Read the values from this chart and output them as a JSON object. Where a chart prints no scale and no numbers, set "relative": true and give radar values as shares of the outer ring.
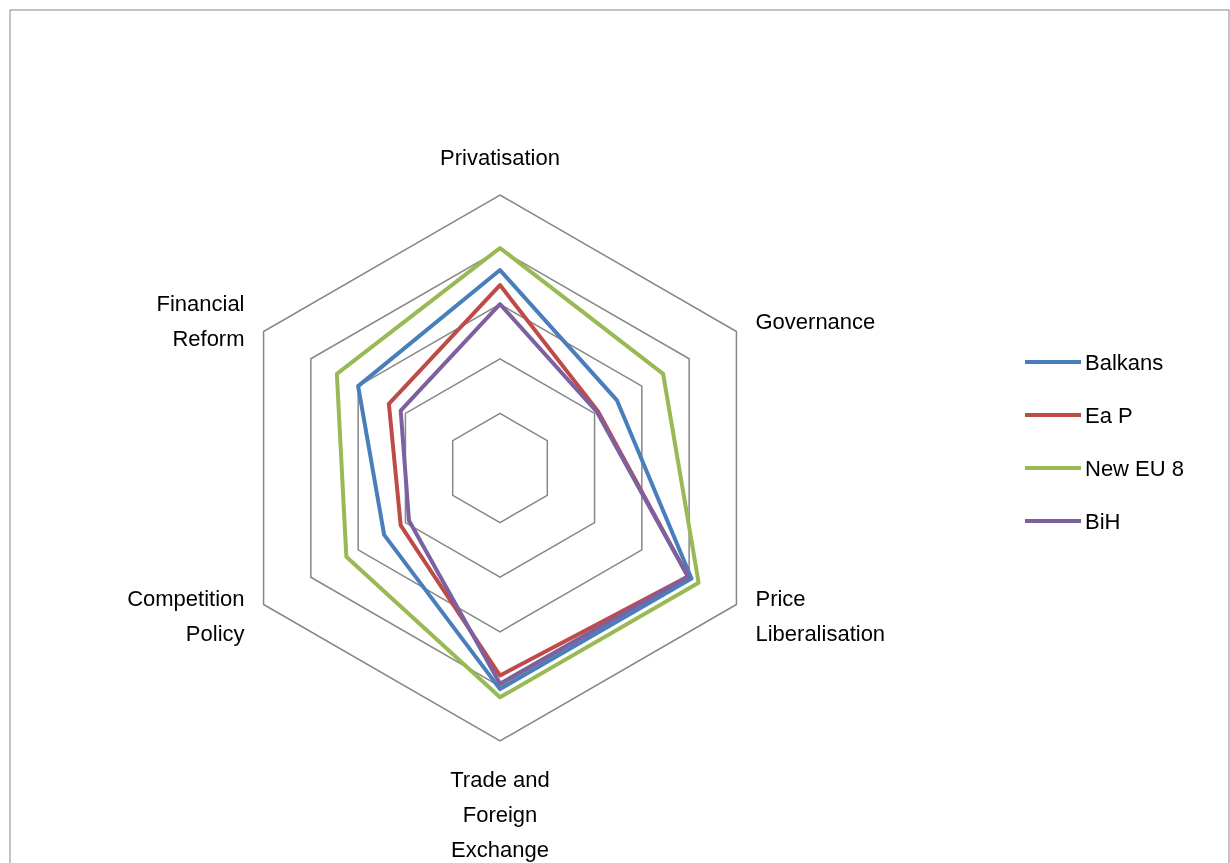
{
  "chart_data": {
    "type": "radar",
    "relative": true,
    "grid": true,
    "legend": "right",
    "categories": [
      "Privatisation",
      "Governance",
      "Price Liberalisation",
      "Trade and Foreign Exchange",
      "Competition Policy",
      "Financial Reform"
    ],
    "series": [
      {
        "name": "Balkans",
        "color": "#4a7ebb",
        "values": [
          0.725,
          0.495,
          0.81,
          0.81,
          0.49,
          0.6
        ]
      },
      {
        "name": "Ea P",
        "color": "#be4b48",
        "values": [
          0.67,
          0.415,
          0.795,
          0.76,
          0.42,
          0.47
        ]
      },
      {
        "name": "New EU 8",
        "color": "#98b954",
        "values": [
          0.806,
          0.69,
          0.84,
          0.84,
          0.65,
          0.69
        ]
      },
      {
        "name": "BiH",
        "color": "#7d60a0",
        "values": [
          0.6,
          0.41,
          0.795,
          0.79,
          0.385,
          0.42
        ]
      }
    ]
  }
}
